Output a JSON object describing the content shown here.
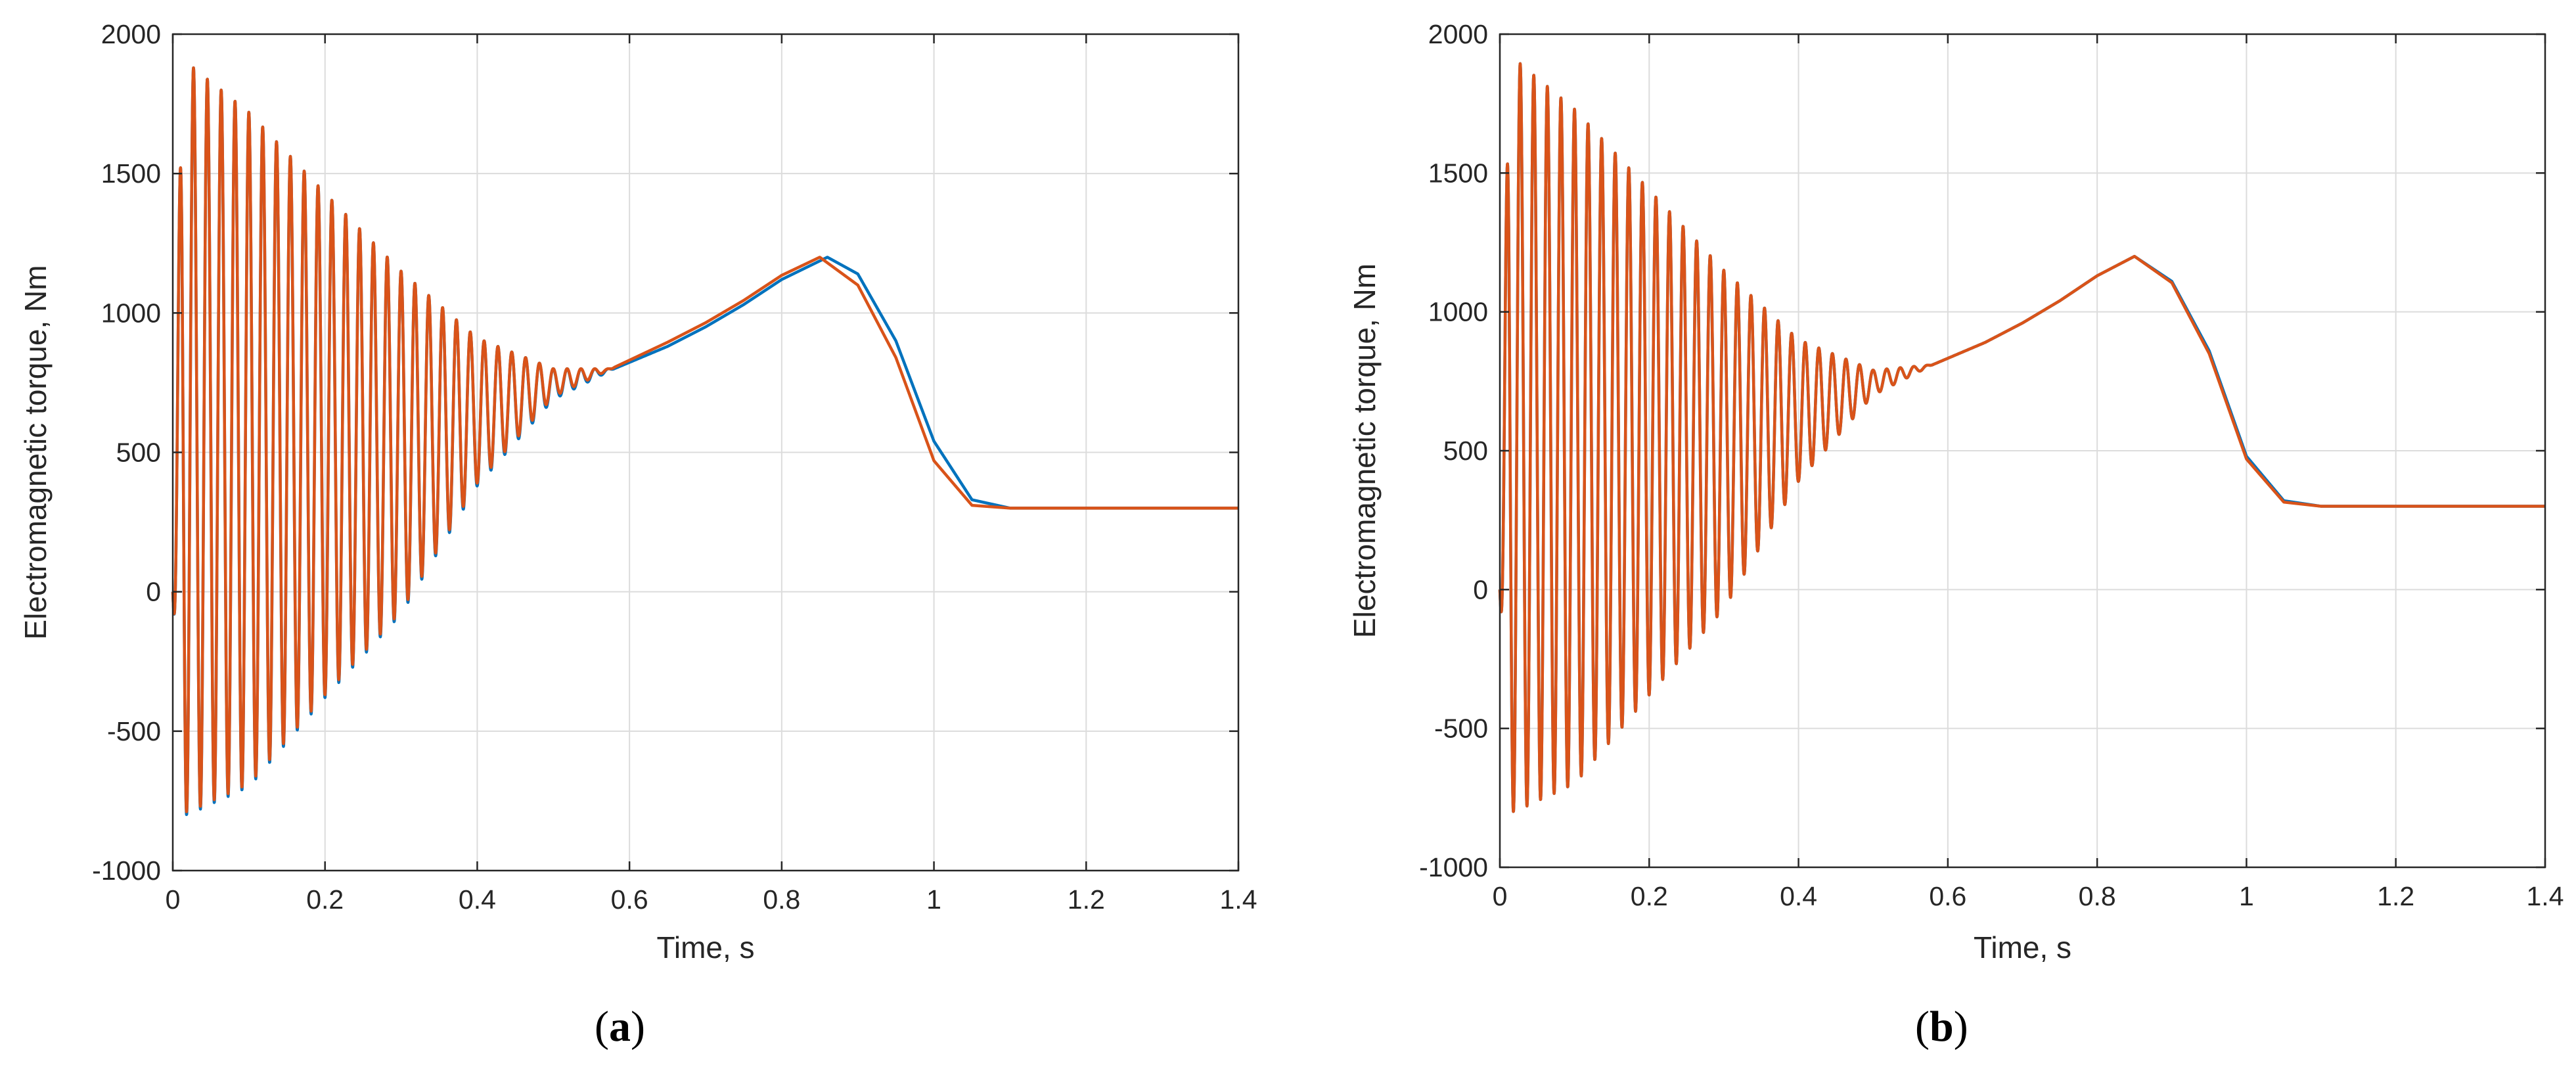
{
  "colors": {
    "series_1": "#0072BD",
    "series_2": "#D95319",
    "grid": "#dcdcdc",
    "axis": "#262626"
  },
  "captions": {
    "a": {
      "open": "(",
      "letter": "a",
      "close": ")"
    },
    "b": {
      "open": "(",
      "letter": "b",
      "close": ")"
    }
  },
  "chart_data": [
    {
      "type": "line",
      "panel": "a",
      "xlabel": "Time, s",
      "ylabel": "Electromagnetic torque, Nm",
      "xlim": [
        0,
        1.4
      ],
      "ylim": [
        -1000,
        2000
      ],
      "xticks": [
        0,
        0.2,
        0.4,
        0.6,
        0.8,
        1,
        1.2,
        1.4
      ],
      "yticks": [
        -1000,
        -500,
        0,
        500,
        1000,
        1500,
        2000
      ],
      "xtick_labels": [
        "0",
        "0.2",
        "0.4",
        "0.6",
        "0.8",
        "1",
        "1.2",
        "1.4"
      ],
      "ytick_labels": [
        "-1000",
        "-500",
        "0",
        "500",
        "1000",
        "1500",
        "2000"
      ],
      "grid": true,
      "series": [
        {
          "color": "#0072BD",
          "description": "oscillating start-up torque, then peak and steady load",
          "oscillation_frequency_hz": 55,
          "oscillation_end_s": 0.58,
          "envelope_upper": [
            [
              0.02,
              1895
            ],
            [
              0.1,
              1720
            ],
            [
              0.2,
              1430
            ],
            [
              0.3,
              1150
            ],
            [
              0.4,
              910
            ],
            [
              0.5,
              800
            ],
            [
              0.58,
              800
            ]
          ],
          "envelope_lower": [
            [
              0.02,
              -800
            ],
            [
              0.1,
              -700
            ],
            [
              0.2,
              -380
            ],
            [
              0.3,
              -80
            ],
            [
              0.4,
              380
            ],
            [
              0.5,
              690
            ],
            [
              0.58,
              800
            ]
          ],
          "smooth_points": [
            [
              0.58,
              800
            ],
            [
              0.65,
              880
            ],
            [
              0.7,
              950
            ],
            [
              0.75,
              1030
            ],
            [
              0.8,
              1120
            ],
            [
              0.86,
              1200
            ],
            [
              0.9,
              1140
            ],
            [
              0.95,
              900
            ],
            [
              1.0,
              540
            ],
            [
              1.05,
              330
            ],
            [
              1.1,
              300
            ],
            [
              1.4,
              300
            ]
          ]
        },
        {
          "color": "#D95319",
          "description": "oscillating start-up torque, then peak and steady load",
          "oscillation_frequency_hz": 55,
          "oscillation_end_s": 0.58,
          "envelope_upper": [
            [
              0.02,
              1895
            ],
            [
              0.1,
              1720
            ],
            [
              0.2,
              1430
            ],
            [
              0.3,
              1150
            ],
            [
              0.4,
              910
            ],
            [
              0.5,
              800
            ],
            [
              0.58,
              800
            ]
          ],
          "envelope_lower": [
            [
              0.02,
              -790
            ],
            [
              0.1,
              -690
            ],
            [
              0.2,
              -370
            ],
            [
              0.3,
              -70
            ],
            [
              0.4,
              390
            ],
            [
              0.5,
              700
            ],
            [
              0.58,
              805
            ]
          ],
          "smooth_points": [
            [
              0.58,
              805
            ],
            [
              0.65,
              895
            ],
            [
              0.7,
              965
            ],
            [
              0.75,
              1045
            ],
            [
              0.8,
              1135
            ],
            [
              0.85,
              1200
            ],
            [
              0.9,
              1100
            ],
            [
              0.95,
              840
            ],
            [
              1.0,
              470
            ],
            [
              1.05,
              310
            ],
            [
              1.1,
              300
            ],
            [
              1.4,
              300
            ]
          ]
        }
      ]
    },
    {
      "type": "line",
      "panel": "b",
      "xlabel": "Time, s",
      "ylabel": "Electromagnetic torque, Nm",
      "xlim": [
        0,
        1.4
      ],
      "ylim": [
        -1000,
        2000
      ],
      "xticks": [
        0,
        0.2,
        0.4,
        0.6,
        0.8,
        1,
        1.2,
        1.4
      ],
      "yticks": [
        -1000,
        -500,
        0,
        500,
        1000,
        1500,
        2000
      ],
      "xtick_labels": [
        "0",
        "0.2",
        "0.4",
        "0.6",
        "0.8",
        "1",
        "1.2",
        "1.4"
      ],
      "ytick_labels": [
        "-1000",
        "-500",
        "0",
        "500",
        "1000",
        "1500",
        "2000"
      ],
      "grid": true,
      "series": [
        {
          "color": "#0072BD",
          "description": "oscillating start-up torque, then peak and steady load",
          "oscillation_frequency_hz": 55,
          "oscillation_end_s": 0.58,
          "envelope_upper": [
            [
              0.02,
              1910
            ],
            [
              0.1,
              1730
            ],
            [
              0.2,
              1440
            ],
            [
              0.3,
              1150
            ],
            [
              0.4,
              900
            ],
            [
              0.5,
              790
            ],
            [
              0.58,
              810
            ]
          ],
          "envelope_lower": [
            [
              0.02,
              -800
            ],
            [
              0.1,
              -700
            ],
            [
              0.2,
              -380
            ],
            [
              0.3,
              -70
            ],
            [
              0.4,
              390
            ],
            [
              0.5,
              700
            ],
            [
              0.58,
              810
            ]
          ],
          "smooth_points": [
            [
              0.58,
              810
            ],
            [
              0.65,
              890
            ],
            [
              0.7,
              960
            ],
            [
              0.75,
              1040
            ],
            [
              0.8,
              1130
            ],
            [
              0.85,
              1200
            ],
            [
              0.9,
              1110
            ],
            [
              0.95,
              860
            ],
            [
              1.0,
              480
            ],
            [
              1.05,
              320
            ],
            [
              1.1,
              300
            ],
            [
              1.4,
              300
            ]
          ]
        },
        {
          "color": "#D95319",
          "description": "oscillating start-up torque, then peak and steady load",
          "oscillation_frequency_hz": 55,
          "oscillation_end_s": 0.58,
          "envelope_upper": [
            [
              0.02,
              1910
            ],
            [
              0.1,
              1730
            ],
            [
              0.2,
              1440
            ],
            [
              0.3,
              1150
            ],
            [
              0.4,
              900
            ],
            [
              0.5,
              790
            ],
            [
              0.58,
              810
            ]
          ],
          "envelope_lower": [
            [
              0.02,
              -800
            ],
            [
              0.1,
              -700
            ],
            [
              0.2,
              -380
            ],
            [
              0.3,
              -70
            ],
            [
              0.4,
              390
            ],
            [
              0.5,
              700
            ],
            [
              0.58,
              810
            ]
          ],
          "smooth_points": [
            [
              0.58,
              810
            ],
            [
              0.65,
              890
            ],
            [
              0.7,
              960
            ],
            [
              0.75,
              1040
            ],
            [
              0.8,
              1130
            ],
            [
              0.85,
              1200
            ],
            [
              0.9,
              1105
            ],
            [
              0.95,
              850
            ],
            [
              1.0,
              470
            ],
            [
              1.05,
              315
            ],
            [
              1.1,
              300
            ],
            [
              1.4,
              300
            ]
          ]
        }
      ]
    }
  ]
}
